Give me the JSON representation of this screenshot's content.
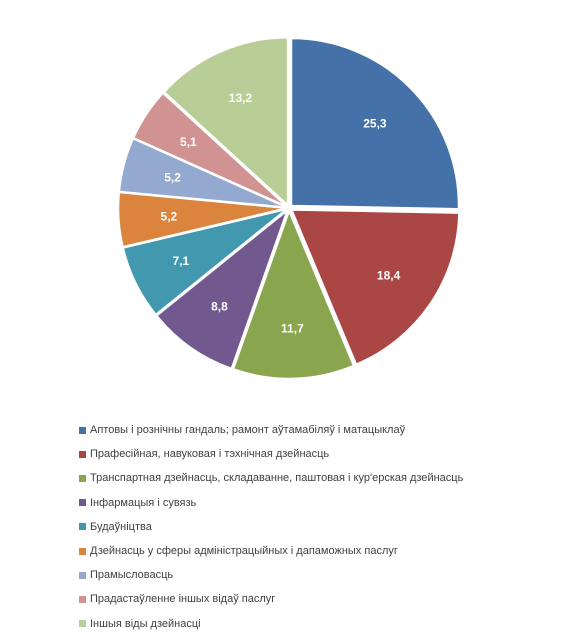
{
  "chart_data": {
    "type": "pie",
    "title": "",
    "slices": [
      {
        "label": "Аптовы  і рознічны гандаль; рамонт аўтамабіляў і матацыклаў",
        "value": 25.3,
        "value_label": "25,3",
        "color": "#4472A8"
      },
      {
        "label": "Прафесійная, навуковая і тэхнічная дзейнасць",
        "value": 18.4,
        "value_label": "18,4",
        "color": "#AA4644"
      },
      {
        "label": "Транспартная дзейнасць, складаванне, паштовая і кур'ерская дзейнасць",
        "value": 11.7,
        "value_label": "11,7",
        "color": "#89A54E"
      },
      {
        "label": "Інфармацыя і сувязь",
        "value": 8.8,
        "value_label": "8,8",
        "color": "#71588F"
      },
      {
        "label": "Будаўніцтва",
        "value": 7.1,
        "value_label": "7,1",
        "color": "#4198AF"
      },
      {
        "label": "Дзейнасць у сферы адміністрацыйных і дапаможных паслуг",
        "value": 5.2,
        "value_label": "5,2",
        "color": "#DB843D"
      },
      {
        "label": "Прамысловасць",
        "value": 5.2,
        "value_label": "5,2",
        "color": "#93A9CF"
      },
      {
        "label": "Прадастаўленне іншых відаў паслуг",
        "value": 5.1,
        "value_label": "5,1",
        "color": "#D19392"
      },
      {
        "label": "Іншыя віды дзейнасці",
        "value": 13.2,
        "value_label": "13,2",
        "color": "#B9CD96"
      }
    ],
    "legend_position": "bottom"
  }
}
